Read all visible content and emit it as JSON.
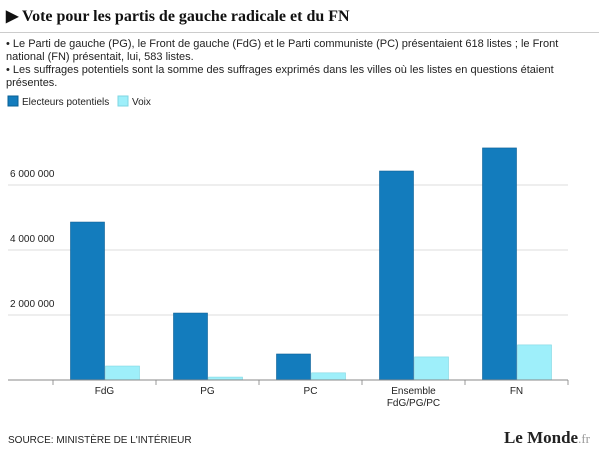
{
  "chart_data": {
    "type": "bar",
    "title": "Vote pour les partis de gauche radicale et du FN",
    "notes": [
      "• Le Parti de gauche (PG), le Front de gauche (FdG) et le Parti communiste (PC) présentaient 618 listes ; le Front national (FN) présentait, lui, 583 listes.",
      "• Les suffrages potentiels sont la somme des suffrages exprimés dans les villes où les listes en questions étaient présentes."
    ],
    "categories": [
      "FdG",
      "PG",
      "PC",
      "Ensemble FdG/PG/PC",
      "FN"
    ],
    "series": [
      {
        "name": "Electeurs potentiels",
        "color": "#137cbd",
        "values": [
          4860000,
          2060000,
          800000,
          6430000,
          7140000
        ]
      },
      {
        "name": "Voix",
        "color": "#9eeffa",
        "values": [
          430000,
          90000,
          220000,
          710000,
          1080000
        ]
      }
    ],
    "ylim": [
      0,
      7200000
    ],
    "yticks": [
      {
        "value": 2000000,
        "label": "2 000 000"
      },
      {
        "value": 4000000,
        "label": "4 000 000"
      },
      {
        "value": 6000000,
        "label": "6 000 000"
      }
    ],
    "grid": true,
    "source": "SOURCE: MINISTÈRE DE L'INTÉRIEUR",
    "logo": "Le Monde",
    "logo_suffix": ".fr"
  }
}
